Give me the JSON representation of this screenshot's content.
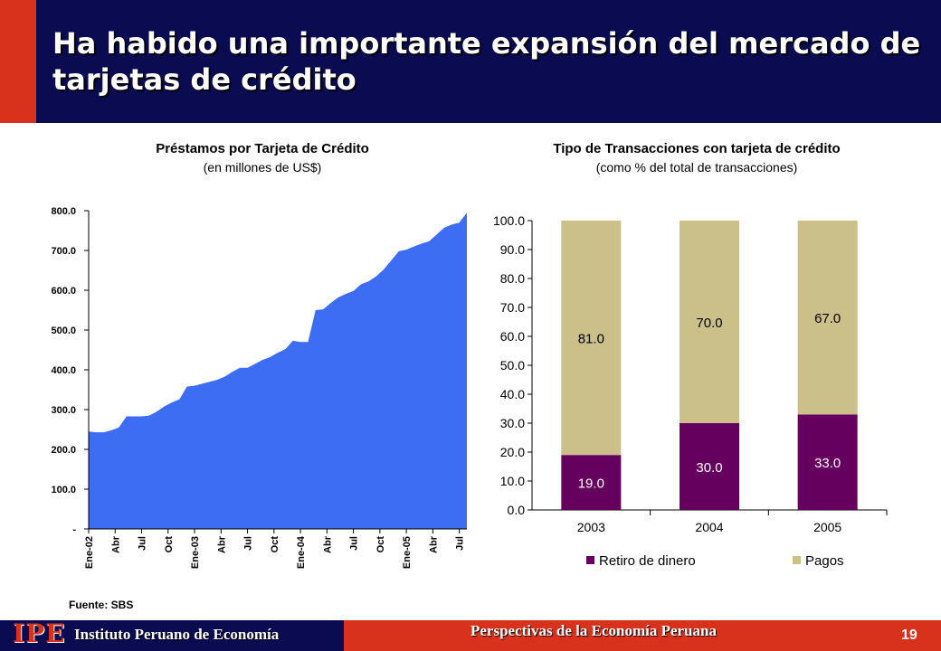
{
  "slide": {
    "title": "Ha habido una importante expansión del mercado de tarjetas de crédito",
    "source": "Fuente: SBS"
  },
  "footer": {
    "logo_text": "IPE",
    "institute": "Instituto Peruano de Economía",
    "center": "Perspectivas de la Economía Peruana",
    "page": "19"
  },
  "colors": {
    "header_bg": "#0b0b52",
    "accent": "#d9321c",
    "area_fill": "#3d6df2",
    "retiro": "#66005e",
    "pagos": "#cbbf8a"
  },
  "chart_data": [
    {
      "type": "area",
      "title": "Préstamos por Tarjeta de Crédito",
      "subtitle": "(en millones de US$)",
      "y_ticks": [
        "-",
        "100.0",
        "200.0",
        "300.0",
        "400.0",
        "500.0",
        "600.0",
        "700.0",
        "800.0"
      ],
      "ylim": [
        0,
        800
      ],
      "x_tick_labels": [
        "Ene-02",
        "Abr",
        "Jul",
        "Oct",
        "Ene-03",
        "Abr",
        "Jul",
        "Oct",
        "Ene-04",
        "Abr",
        "Jul",
        "Oct",
        "Ene-05",
        "Abr",
        "Jul"
      ],
      "series": [
        {
          "values": [
            245,
            243,
            243,
            248,
            255,
            283,
            283,
            283,
            285,
            295,
            308,
            318,
            326,
            358,
            360,
            365,
            370,
            375,
            383,
            395,
            405,
            405,
            415,
            425,
            432,
            443,
            452,
            473,
            470,
            470,
            550,
            552,
            568,
            582,
            591,
            598,
            615,
            622,
            635,
            652,
            675,
            698,
            702,
            710,
            717,
            723,
            740,
            757,
            765,
            770,
            795
          ]
        }
      ]
    },
    {
      "type": "bar",
      "stacked": true,
      "title": "Tipo de Transacciones con tarjeta de crédito",
      "subtitle": "(como % del total de transacciones)",
      "categories": [
        "2003",
        "2004",
        "2005"
      ],
      "y_ticks": [
        "0.0",
        "10.0",
        "20.0",
        "30.0",
        "40.0",
        "50.0",
        "60.0",
        "70.0",
        "80.0",
        "90.0",
        "100.0"
      ],
      "ylim": [
        0,
        100
      ],
      "series": [
        {
          "name": "Retiro de dinero",
          "values": [
            19.0,
            30.0,
            33.0
          ],
          "labels": [
            "19.0",
            "30.0",
            "33.0"
          ]
        },
        {
          "name": "Pagos",
          "values": [
            81.0,
            70.0,
            67.0
          ],
          "labels": [
            "81.0",
            "70.0",
            "67.0"
          ]
        }
      ],
      "legend": "bottom"
    }
  ]
}
